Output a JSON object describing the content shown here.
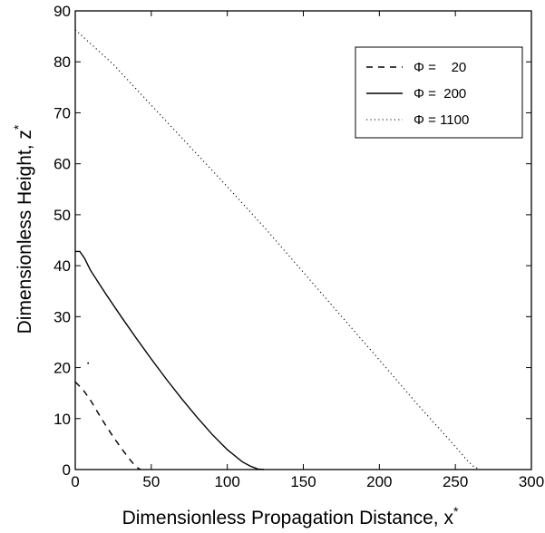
{
  "chart_data": {
    "type": "line",
    "title": "",
    "xlabel": "Dimensionless Propagation Distance, x",
    "xlabel_sup": "*",
    "ylabel": "Dimensionless Height, z",
    "ylabel_sup": "*",
    "xlim": [
      0,
      300
    ],
    "ylim": [
      0,
      90
    ],
    "xticks": [
      "0",
      "50",
      "100",
      "150",
      "200",
      "250",
      "300"
    ],
    "yticks": [
      "0",
      "10",
      "20",
      "30",
      "40",
      "50",
      "60",
      "70",
      "80",
      "90"
    ],
    "grid": false,
    "legend_position": "top-right",
    "series": [
      {
        "name": "Φ =    20",
        "style": "dashed",
        "x": [
          0,
          5,
          10,
          15,
          20,
          25,
          30,
          35,
          40,
          43
        ],
        "y": [
          17.2,
          15.7,
          13.6,
          11.1,
          8.7,
          6.4,
          4.3,
          2.3,
          0.5,
          0
        ]
      },
      {
        "name": "Φ =  200",
        "style": "solid",
        "x": [
          0,
          3,
          6,
          10,
          20,
          30,
          40,
          50,
          60,
          70,
          80,
          90,
          100,
          110,
          115,
          120,
          124
        ],
        "y": [
          42.8,
          42.8,
          41.5,
          39.1,
          34.5,
          30.1,
          25.8,
          21.7,
          17.7,
          13.9,
          10.3,
          6.9,
          3.9,
          1.5,
          0.7,
          0.1,
          0
        ]
      },
      {
        "name": "Φ = 1100",
        "style": "dotted",
        "x": [
          0,
          25,
          50,
          75,
          100,
          125,
          150,
          175,
          200,
          225,
          250,
          258,
          262,
          266
        ],
        "y": [
          86.3,
          79.5,
          71.5,
          63.5,
          55.5,
          47.3,
          38.7,
          30.1,
          21.5,
          12.8,
          4.5,
          1.7,
          0.6,
          0
        ]
      }
    ],
    "annotations": [
      {
        "text": "·",
        "x": 8.5,
        "y": 20.8
      }
    ]
  }
}
